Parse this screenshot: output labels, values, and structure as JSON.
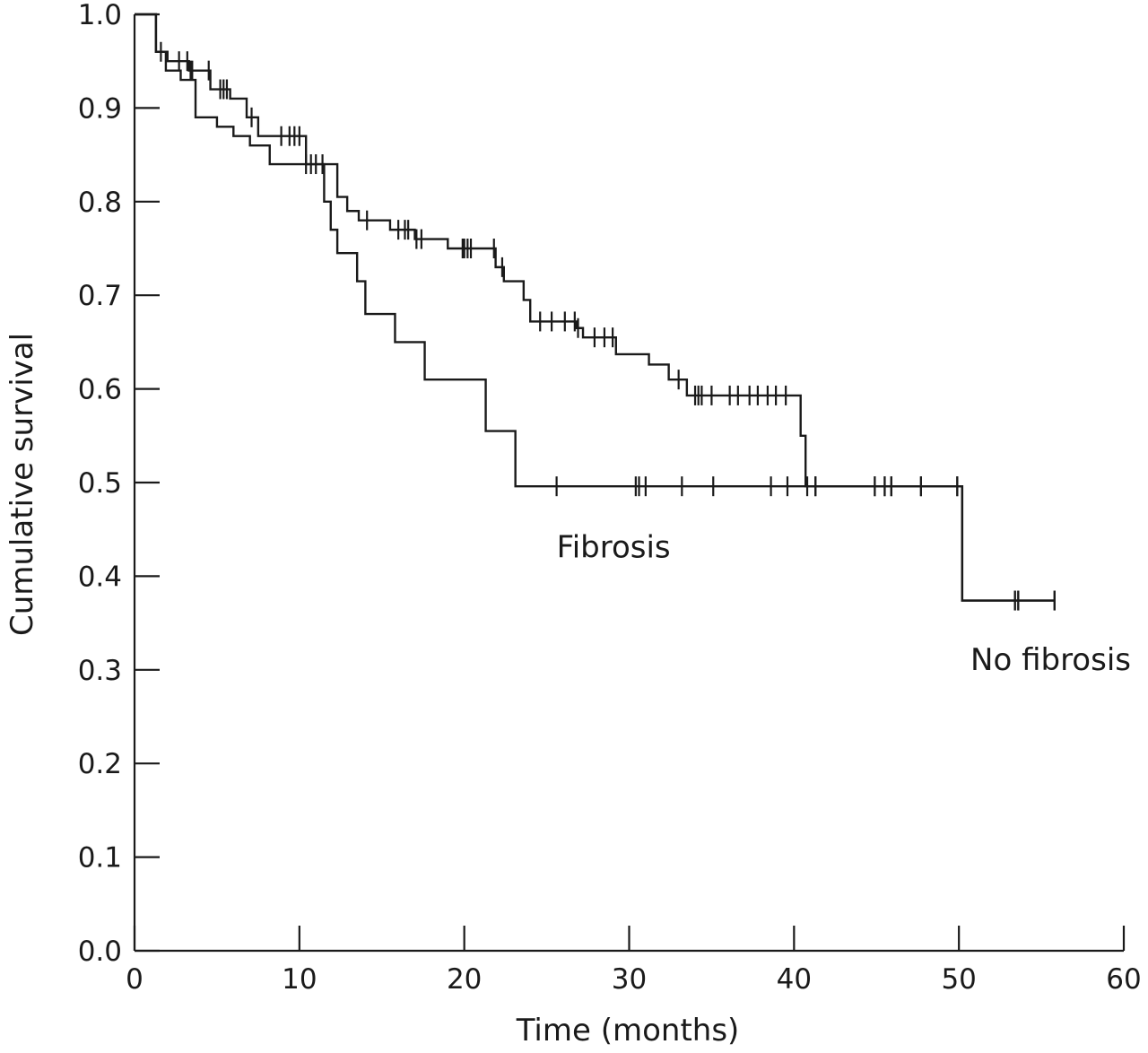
{
  "chart_data": {
    "type": "line",
    "style": "step (Kaplan-Meier survival curves with censor marks)",
    "xlabel": "Time (months)",
    "ylabel": "Cumulative survival",
    "xlim": [
      0,
      60
    ],
    "ylim": [
      0,
      1
    ],
    "xticks": [
      "0",
      "10",
      "20",
      "30",
      "40",
      "50",
      "60"
    ],
    "yticks": [
      "0.0",
      "0.1",
      "0.2",
      "0.3",
      "0.4",
      "0.5",
      "0.6",
      "0.7",
      "0.8",
      "0.9",
      "1.0"
    ],
    "grid": false,
    "legend": "none (series labelled directly on the plot)",
    "series": [
      {
        "name": "Fibrosis",
        "steps": [
          [
            0,
            1.0
          ],
          [
            1.3,
            0.96
          ],
          [
            1.9,
            0.94
          ],
          [
            2.8,
            0.93
          ],
          [
            3.7,
            0.89
          ],
          [
            5.0,
            0.88
          ],
          [
            6.0,
            0.87
          ],
          [
            7.0,
            0.86
          ],
          [
            8.2,
            0.84
          ],
          [
            11.5,
            0.8
          ],
          [
            11.9,
            0.77
          ],
          [
            12.3,
            0.745
          ],
          [
            13.5,
            0.715
          ],
          [
            14.0,
            0.68
          ],
          [
            15.8,
            0.65
          ],
          [
            17.6,
            0.61
          ],
          [
            21.3,
            0.555
          ],
          [
            23.1,
            0.496
          ],
          [
            50.2,
            0.374
          ],
          [
            55.8,
            0.374
          ]
        ],
        "censored": [
          25.6,
          30.4,
          30.6,
          31.0,
          33.2,
          35.1,
          38.6,
          39.6,
          40.8,
          41.3,
          44.9,
          45.5,
          45.9,
          47.7,
          49.9,
          53.4,
          53.6,
          55.8
        ],
        "label_position": [
          25.6,
          0.42
        ]
      },
      {
        "name": "No fibrosis",
        "steps": [
          [
            0,
            1.0
          ],
          [
            1.3,
            0.96
          ],
          [
            2.0,
            0.95
          ],
          [
            3.3,
            0.94
          ],
          [
            4.6,
            0.92
          ],
          [
            5.8,
            0.91
          ],
          [
            6.8,
            0.89
          ],
          [
            7.5,
            0.87
          ],
          [
            10.4,
            0.84
          ],
          [
            12.3,
            0.805
          ],
          [
            12.9,
            0.79
          ],
          [
            13.6,
            0.78
          ],
          [
            15.5,
            0.77
          ],
          [
            17.0,
            0.76
          ],
          [
            19.0,
            0.75
          ],
          [
            21.9,
            0.73
          ],
          [
            22.4,
            0.715
          ],
          [
            23.6,
            0.695
          ],
          [
            24.0,
            0.672
          ],
          [
            26.8,
            0.665
          ],
          [
            27.2,
            0.655
          ],
          [
            29.2,
            0.637
          ],
          [
            31.2,
            0.626
          ],
          [
            32.4,
            0.61
          ],
          [
            33.5,
            0.593
          ],
          [
            40.4,
            0.55
          ],
          [
            40.7,
            0.496
          ],
          [
            50.2,
            0.374
          ],
          [
            55.8,
            0.374
          ]
        ],
        "censored": [
          1.6,
          2.7,
          3.2,
          3.4,
          3.5,
          4.5,
          5.2,
          5.4,
          5.6,
          7.1,
          8.9,
          9.4,
          9.7,
          10.0,
          10.4,
          10.7,
          11.0,
          11.4,
          14.1,
          16.0,
          16.4,
          16.6,
          17.1,
          17.4,
          19.9,
          20.0,
          20.2,
          20.4,
          21.8,
          22.3,
          24.6,
          25.3,
          26.1,
          26.7,
          26.9,
          27.9,
          28.5,
          29.0,
          33.0,
          34.0,
          34.2,
          34.4,
          35.0,
          36.1,
          36.6,
          37.3,
          37.8,
          38.4,
          38.9,
          39.5,
          41.3,
          44.9,
          45.5,
          45.9,
          47.7,
          49.9,
          53.4,
          53.6,
          55.8
        ],
        "label_position": [
          50.7,
          0.3
        ]
      }
    ]
  }
}
